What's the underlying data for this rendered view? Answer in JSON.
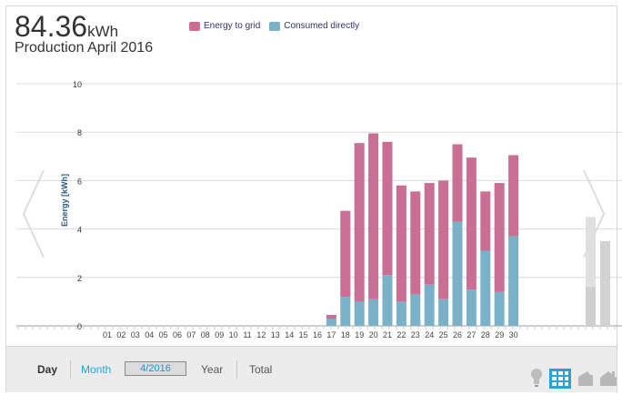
{
  "header": {
    "total_value": "84.36",
    "total_unit": "kWh",
    "subtitle": "Production April 2016"
  },
  "legend": {
    "items": [
      {
        "label": "Energy to grid",
        "color": "#c96f94"
      },
      {
        "label": "Consumed directly",
        "color": "#7ab1c8"
      }
    ]
  },
  "chart_data": {
    "type": "bar",
    "stacked": true,
    "ylabel": "Energy [kWh]",
    "ylim": [
      0,
      10
    ],
    "yticks": [
      0,
      2,
      4,
      6,
      8,
      10
    ],
    "grid": true,
    "categories": [
      "01",
      "02",
      "03",
      "04",
      "05",
      "06",
      "07",
      "08",
      "09",
      "10",
      "11",
      "12",
      "13",
      "14",
      "15",
      "16",
      "17",
      "18",
      "19",
      "20",
      "21",
      "22",
      "23",
      "24",
      "25",
      "26",
      "27",
      "28",
      "29",
      "30"
    ],
    "series": [
      {
        "name": "Consumed directly",
        "color": "#7ab1c8",
        "values": [
          0,
          0,
          0,
          0,
          0,
          0,
          0,
          0,
          0,
          0,
          0,
          0,
          0,
          0,
          0,
          0,
          0.3,
          1.2,
          1.0,
          1.1,
          2.1,
          1.0,
          1.3,
          1.7,
          1.1,
          4.3,
          1.5,
          3.1,
          1.4,
          3.7
        ]
      },
      {
        "name": "Energy to grid",
        "color": "#c96f94",
        "values": [
          0,
          0,
          0,
          0,
          0,
          0,
          0,
          0,
          0,
          0,
          0,
          0,
          0,
          0,
          0,
          0,
          0.15,
          3.55,
          6.55,
          6.85,
          5.5,
          4.8,
          4.25,
          4.2,
          4.9,
          3.2,
          5.45,
          2.45,
          4.5,
          3.35
        ]
      }
    ]
  },
  "controls": {
    "day": "Day",
    "month": "Month",
    "period": "4/2016",
    "year": "Year",
    "total": "Total"
  },
  "icons": {
    "previous": "chevron-left-icon",
    "next": "chevron-right-icon",
    "bulb": "lightbulb-icon",
    "grid": "grid-view-icon",
    "wallet": "wallet-icon",
    "house": "house-icon"
  }
}
